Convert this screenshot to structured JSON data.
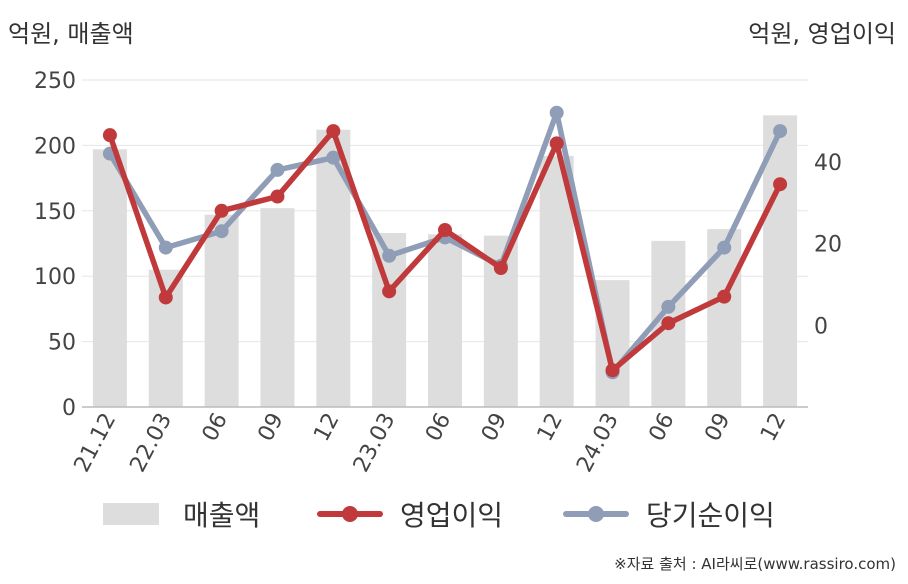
{
  "chart_data": {
    "type": "bar+line",
    "left_axis_label": "억원, 매출액",
    "right_axis_label": "억원, 영업이익",
    "categories": [
      "21.12",
      "22.03",
      "06",
      "09",
      "12",
      "23.03",
      "06",
      "09",
      "12",
      "24.03",
      "06",
      "09",
      "12"
    ],
    "left_axis": {
      "min": 0,
      "max": 250,
      "ticks": [
        0,
        50,
        100,
        150,
        200,
        250
      ]
    },
    "right_axis": {
      "min": -20,
      "max": 60,
      "ticks": [
        0,
        20,
        40
      ]
    },
    "series": [
      {
        "name": "매출액",
        "type": "bar",
        "axis": "left",
        "color": "#dddddd",
        "values": [
          197,
          105,
          147,
          152,
          212,
          133,
          132,
          131,
          192,
          97,
          127,
          136,
          223
        ]
      },
      {
        "name": "영업이익",
        "type": "line",
        "axis": "right",
        "color": "#c0393b",
        "values": [
          46.5,
          6.8,
          28.0,
          31.5,
          47.5,
          8.3,
          23.3,
          14.0,
          44.5,
          -11.0,
          0.5,
          7.0,
          34.5
        ]
      },
      {
        "name": "당기순이익",
        "type": "line",
        "axis": "right",
        "color": "#8f9db6",
        "values": [
          42.0,
          19.0,
          23.0,
          38.0,
          41.0,
          17.0,
          21.5,
          14.5,
          52.0,
          -11.5,
          4.5,
          19.0,
          47.5
        ]
      }
    ],
    "grid": true,
    "legend_position": "bottom"
  },
  "source_text": "※자료 출처 : AI라씨로(www.rassiro.com)"
}
